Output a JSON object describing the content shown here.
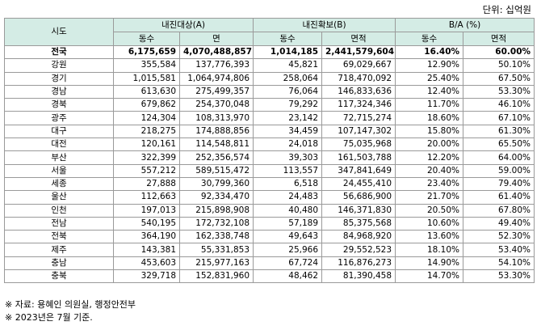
{
  "unit_note": "단위: 십억원",
  "table": {
    "header_top": [
      "시도",
      "내진대상(A)",
      "내진확보(B)",
      "B/A (%)"
    ],
    "header_sub": [
      "동수",
      "면",
      "동수",
      "면적",
      "동수",
      "면적"
    ],
    "rows": [
      [
        "전국",
        "6,175,659",
        "4,070,488,857",
        "1,014,185",
        "2,441,579,604",
        "16.40%",
        "60.00%"
      ],
      [
        "강원",
        "355,584",
        "137,776,393",
        "45,821",
        "69,029,667",
        "12.90%",
        "50.10%"
      ],
      [
        "경기",
        "1,015,581",
        "1,064,974,806",
        "258,064",
        "718,470,092",
        "25.40%",
        "67.50%"
      ],
      [
        "경남",
        "613,630",
        "275,499,357",
        "76,064",
        "146,833,636",
        "12.40%",
        "53.30%"
      ],
      [
        "경북",
        "679,862",
        "254,370,048",
        "79,292",
        "117,324,346",
        "11.70%",
        "46.10%"
      ],
      [
        "광주",
        "124,304",
        "108,313,970",
        "23,142",
        "72,715,274",
        "18.60%",
        "67.10%"
      ],
      [
        "대구",
        "218,275",
        "174,888,856",
        "34,459",
        "107,147,302",
        "15.80%",
        "61.30%"
      ],
      [
        "대전",
        "120,161",
        "114,548,811",
        "24,018",
        "75,035,968",
        "20.00%",
        "65.50%"
      ],
      [
        "부산",
        "322,399",
        "252,356,574",
        "39,303",
        "161,503,788",
        "12.20%",
        "64.00%"
      ],
      [
        "서울",
        "557,212",
        "589,515,472",
        "113,557",
        "347,841,649",
        "20.40%",
        "59.00%"
      ],
      [
        "세종",
        "27,888",
        "30,799,360",
        "6,518",
        "24,455,410",
        "23.40%",
        "79.40%"
      ],
      [
        "울산",
        "112,663",
        "92,334,470",
        "24,483",
        "56,686,900",
        "21.70%",
        "61.40%"
      ],
      [
        "인천",
        "197,013",
        "215,898,908",
        "40,480",
        "146,371,830",
        "20.50%",
        "67.80%"
      ],
      [
        "전남",
        "540,195",
        "172,732,108",
        "57,189",
        "85,375,568",
        "10.60%",
        "49.40%"
      ],
      [
        "전북",
        "364,190",
        "162,338,748",
        "49,643",
        "84,968,920",
        "13.60%",
        "52.30%"
      ],
      [
        "제주",
        "143,381",
        "55,331,853",
        "25,966",
        "29,552,523",
        "18.10%",
        "53.40%"
      ],
      [
        "충남",
        "453,603",
        "215,977,163",
        "67,724",
        "116,876,273",
        "14.90%",
        "54.10%"
      ],
      [
        "충북",
        "329,718",
        "152,831,960",
        "48,462",
        "81,390,458",
        "14.70%",
        "53.30%"
      ]
    ]
  },
  "footnotes": [
    "※ 자료: 용혜인 의원실, 행정안전부",
    "※ 2023년은 7월 기준."
  ]
}
